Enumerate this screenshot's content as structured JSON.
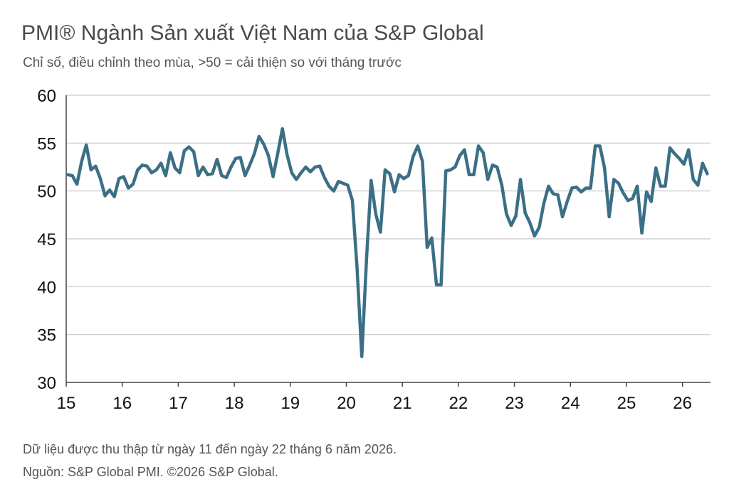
{
  "header": {
    "title": "PMI® Ngành Sản xuất Việt Nam của S&P Global",
    "subtitle": "Chỉ số, điều chỉnh theo mùa, >50 = cải thiện so với tháng trước"
  },
  "footer": {
    "note": "Dữ liệu được thu thập từ ngày 11 đến ngày 22 tháng 6 năm 2026.",
    "source": "Nguồn: S&P Global PMI. ©2026 S&P Global."
  },
  "colors": {
    "line": "#3b6f86",
    "grid": "#c8c8c8",
    "axis": "#444444"
  },
  "chart_data": {
    "type": "line",
    "title": "PMI® Ngành Sản xuất Việt Nam của S&P Global",
    "subtitle": "Chỉ số, điều chỉnh theo mùa, >50 = cải thiện so với tháng trước",
    "xlabel": "",
    "ylabel": "",
    "ylim": [
      30,
      60
    ],
    "yticks": [
      30,
      35,
      40,
      45,
      50,
      55,
      60
    ],
    "xticks": [
      "15",
      "16",
      "17",
      "18",
      "19",
      "20",
      "21",
      "22",
      "23",
      "24",
      "25",
      "26"
    ],
    "x_start": "2015-01",
    "x_end": "2026-06",
    "grid": true,
    "series": [
      {
        "values": [
          51.7,
          51.6,
          50.7,
          53.1,
          54.8,
          52.2,
          52.6,
          51.3,
          49.5,
          50.1,
          49.4,
          51.3,
          51.5,
          50.3,
          50.7,
          52.2,
          52.7,
          52.6,
          51.9,
          52.2,
          52.9,
          51.6,
          54.0,
          52.4,
          51.9,
          54.2,
          54.6,
          54.1,
          51.6,
          52.5,
          51.7,
          51.8,
          53.3,
          51.6,
          51.4,
          52.5,
          53.4,
          53.5,
          51.6,
          52.7,
          53.9,
          55.7,
          54.9,
          53.7,
          51.5,
          53.9,
          56.5,
          53.8,
          51.9,
          51.2,
          51.9,
          52.5,
          52.0,
          52.5,
          52.6,
          51.4,
          50.5,
          50.0,
          51.0,
          50.8,
          50.6,
          49.0,
          41.9,
          32.7,
          42.7,
          51.1,
          47.6,
          45.7,
          52.2,
          51.8,
          49.9,
          51.7,
          51.3,
          51.6,
          53.6,
          54.7,
          53.1,
          44.1,
          45.1,
          40.2,
          40.2,
          52.1,
          52.2,
          52.5,
          53.7,
          54.3,
          51.7,
          51.7,
          54.7,
          54.0,
          51.2,
          52.7,
          52.5,
          50.6,
          47.6,
          46.4,
          47.4,
          51.2,
          47.7,
          46.7,
          45.3,
          46.2,
          48.7,
          50.5,
          49.7,
          49.6,
          47.3,
          48.9,
          50.3,
          50.4,
          49.9,
          50.3,
          50.3,
          54.7,
          54.7,
          52.4,
          47.3,
          51.2,
          50.8,
          49.8,
          49.0,
          49.2,
          50.5,
          45.6,
          49.9,
          48.9,
          52.4,
          50.5,
          50.5,
          54.5,
          53.9,
          53.4,
          52.8,
          54.3,
          51.2,
          50.6,
          52.9,
          51.8
        ]
      }
    ]
  }
}
